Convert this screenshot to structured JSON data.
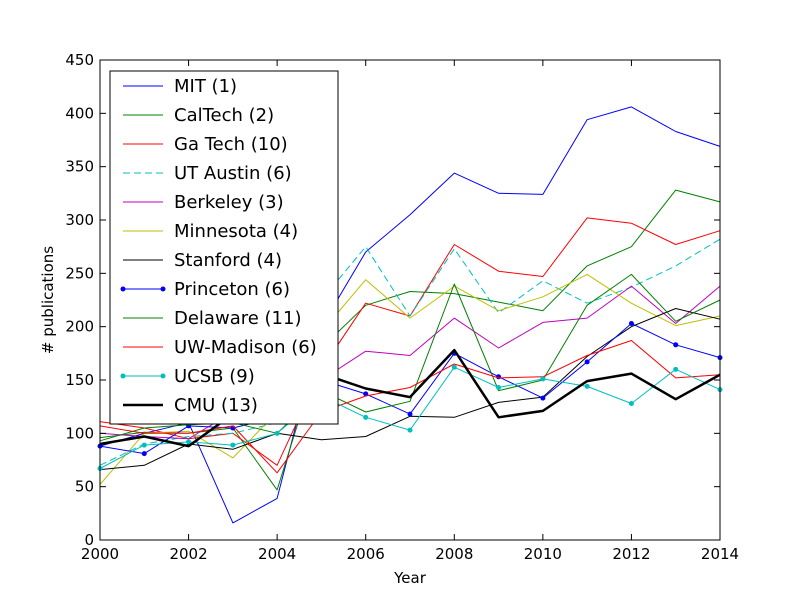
{
  "chart_data": {
    "type": "line",
    "title": "",
    "xlabel": "Year",
    "ylabel": "# publications",
    "xlim": [
      2000,
      2014
    ],
    "ylim": [
      0,
      450
    ],
    "xticks": [
      2000,
      2002,
      2004,
      2006,
      2008,
      2010,
      2012,
      2014
    ],
    "yticks": [
      0,
      50,
      100,
      150,
      200,
      250,
      300,
      350,
      400,
      450
    ],
    "grid": false,
    "legend_position": "top-left",
    "x": [
      2000,
      2001,
      2002,
      2003,
      2004,
      2005,
      2006,
      2007,
      2008,
      2009,
      2010,
      2011,
      2012,
      2013,
      2014
    ],
    "series": [
      {
        "name": "MIT (1)",
        "color": "#0000ff",
        "style": "solid",
        "width": 1,
        "marker": "none",
        "values": [
          88,
          100,
          110,
          16,
          39,
          200,
          270,
          305,
          344,
          325,
          324,
          394,
          406,
          383,
          369
        ]
      },
      {
        "name": "CalTech (2)",
        "color": "#008000",
        "style": "solid",
        "width": 1,
        "marker": "none",
        "values": [
          96,
          101,
          100,
          105,
          47,
          180,
          220,
          233,
          231,
          223,
          215,
          257,
          275,
          328,
          317
        ]
      },
      {
        "name": "Ga Tech (10)",
        "color": "#ff0000",
        "style": "solid",
        "width": 1,
        "marker": "none",
        "values": [
          111,
          105,
          95,
          100,
          70,
          160,
          222,
          210,
          277,
          252,
          247,
          302,
          297,
          277,
          290
        ]
      },
      {
        "name": "UT Austin (6)",
        "color": "#00bfbf",
        "style": "dashed",
        "width": 1,
        "marker": "none",
        "values": [
          70,
          90,
          97,
          100,
          110,
          225,
          275,
          210,
          273,
          213,
          243,
          222,
          237,
          257,
          282
        ]
      },
      {
        "name": "Berkeley (3)",
        "color": "#bf00bf",
        "style": "solid",
        "width": 1,
        "marker": "none",
        "values": [
          100,
          97,
          95,
          120,
          115,
          150,
          177,
          173,
          208,
          180,
          204,
          208,
          238,
          203,
          238
        ]
      },
      {
        "name": "Minnesota (4)",
        "color": "#bfbf00",
        "style": "solid",
        "width": 1,
        "marker": "none",
        "values": [
          52,
          100,
          102,
          77,
          120,
          195,
          244,
          208,
          238,
          215,
          228,
          249,
          222,
          201,
          210
        ]
      },
      {
        "name": "Stanford (4)",
        "color": "#000000",
        "style": "solid",
        "width": 1,
        "marker": "none",
        "values": [
          66,
          70,
          90,
          85,
          100,
          94,
          97,
          116,
          115,
          129,
          134,
          172,
          200,
          217,
          207
        ]
      },
      {
        "name": "Princeton (6)",
        "color": "#0000ff",
        "style": "solid",
        "width": 1,
        "marker": "dot",
        "values": [
          88,
          81,
          107,
          105,
          115,
          150,
          137,
          118,
          175,
          153,
          133,
          167,
          203,
          183,
          171
        ]
      },
      {
        "name": "Delaware (11)",
        "color": "#008000",
        "style": "solid",
        "width": 1,
        "marker": "none",
        "values": [
          93,
          105,
          108,
          110,
          100,
          140,
          120,
          130,
          240,
          140,
          150,
          220,
          249,
          205,
          225
        ]
      },
      {
        "name": "UW-Madison (6)",
        "color": "#ff0000",
        "style": "solid",
        "width": 1,
        "marker": "none",
        "values": [
          107,
          100,
          100,
          107,
          63,
          120,
          135,
          143,
          165,
          152,
          153,
          173,
          187,
          152,
          155
        ]
      },
      {
        "name": "UCSB (9)",
        "color": "#00bfbf",
        "style": "solid",
        "width": 1,
        "marker": "dot",
        "values": [
          67,
          89,
          92,
          89,
          100,
          135,
          115,
          103,
          162,
          143,
          151,
          144,
          128,
          160,
          141
        ]
      },
      {
        "name": "CMU (13)",
        "color": "#000000",
        "style": "solid",
        "width": 2.5,
        "marker": "none",
        "values": [
          90,
          97,
          88,
          118,
          120,
          156,
          142,
          134,
          178,
          115,
          121,
          149,
          156,
          132,
          155
        ]
      }
    ]
  }
}
